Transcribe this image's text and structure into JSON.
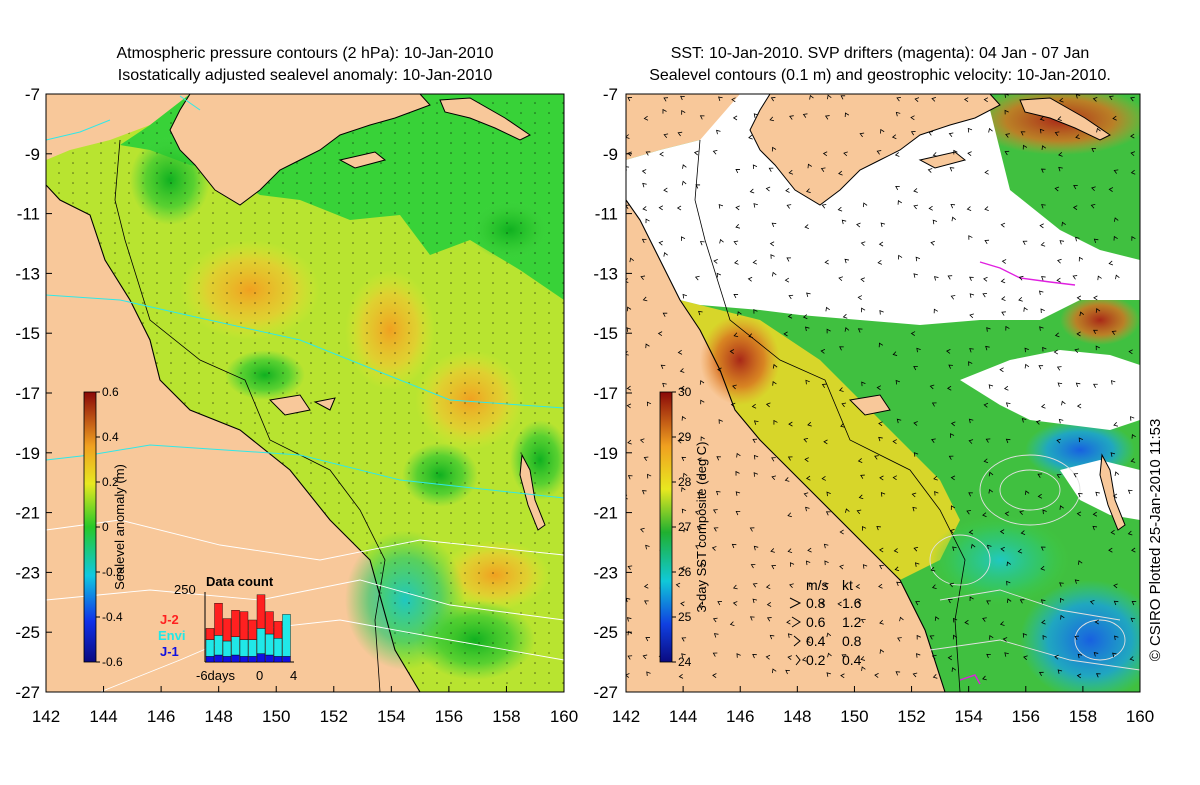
{
  "left_panel": {
    "title_line1": "Atmospheric pressure contours (2 hPa): 10-Jan-2010",
    "title_line2": "Isostatically adjusted sealevel anomaly: 10-Jan-2010",
    "colorbar": {
      "label": "Sealevel anomaly (m)",
      "ticks": [
        "0.6",
        "0.4",
        "0.2",
        "0",
        "-0.2",
        "-0.4",
        "-0.6"
      ]
    },
    "inset": {
      "title": "Data count",
      "ymax_label": "250",
      "legend": [
        {
          "name": "J-2",
          "color": "#ff2020"
        },
        {
          "name": "Envi",
          "color": "#20e8e8"
        },
        {
          "name": "J-1",
          "color": "#1010e0"
        }
      ],
      "x_labels": [
        "-6days",
        "0",
        "4"
      ],
      "bars": [
        {
          "j1": 20,
          "envi": 60,
          "j2": 40
        },
        {
          "j1": 25,
          "envi": 70,
          "j2": 115
        },
        {
          "j1": 20,
          "envi": 55,
          "j2": 80
        },
        {
          "j1": 25,
          "envi": 65,
          "j2": 95
        },
        {
          "j1": 20,
          "envi": 60,
          "j2": 100
        },
        {
          "j1": 20,
          "envi": 60,
          "j2": 70
        },
        {
          "j1": 30,
          "envi": 90,
          "j2": 120
        },
        {
          "j1": 25,
          "envi": 75,
          "j2": 80
        },
        {
          "j1": 20,
          "envi": 65,
          "j2": 60
        },
        {
          "j1": 20,
          "envi": 150,
          "j2": 0
        }
      ]
    }
  },
  "right_panel": {
    "title_line1": "SST: 10-Jan-2010. SVP drifters (magenta): 04 Jan - 07 Jan",
    "title_line2": "Sealevel contours (0.1 m) and geostrophic velocity: 10-Jan-2010.",
    "colorbar": {
      "label": "3-day SST composite (deg C)",
      "ticks": [
        "30",
        "29",
        "28",
        "27",
        "26",
        "25",
        "24"
      ]
    },
    "velocity_legend": {
      "header_ms": "m/s",
      "header_kt": "kt",
      "rows": [
        {
          "ms": "0.8",
          "kt": "1.6"
        },
        {
          "ms": "0.6",
          "kt": "1.2"
        },
        {
          "ms": "0.4",
          "kt": "0.8"
        },
        {
          "ms": "0.2",
          "kt": "0.4"
        }
      ]
    }
  },
  "axes": {
    "y_ticks": [
      "-7",
      "-9",
      "-11",
      "-13",
      "-15",
      "-17",
      "-19",
      "-21",
      "-23",
      "-25",
      "-27"
    ],
    "x_ticks": [
      "142",
      "144",
      "146",
      "148",
      "150",
      "152",
      "154",
      "156",
      "158",
      "160"
    ]
  },
  "credit": "© CSIRO Plotted 25-Jan-2010 11:53",
  "colors": {
    "land": "#f8c89a",
    "ocean_green": "#3cd23c",
    "ocean_yellow": "#d8ee28",
    "ocean_orange": "#f0a020",
    "sst_blue": "#1890e0"
  }
}
